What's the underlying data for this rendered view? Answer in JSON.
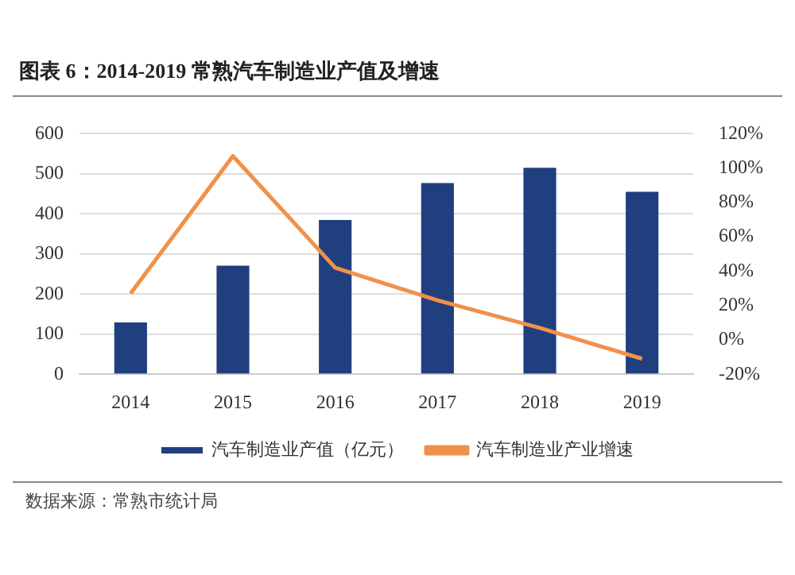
{
  "chart_data": {
    "type": "bar",
    "title": "图表 6：2014-2019 常熟汽车制造业产值及增速",
    "categories": [
      "2014",
      "2015",
      "2016",
      "2017",
      "2018",
      "2019"
    ],
    "series": [
      {
        "name": "汽车制造业产值（亿元）",
        "color": "#203f7f",
        "values": [
          129,
          271,
          385,
          477,
          515,
          455
        ]
      },
      {
        "name": "汽车制造业产业增速",
        "type": "line",
        "axis": "y2",
        "color": "#f0914a",
        "values": [
          27,
          107,
          42,
          23,
          7,
          -11
        ]
      }
    ],
    "ylim": [
      0,
      600
    ],
    "yticks": [
      0,
      100,
      200,
      300,
      400,
      500,
      600
    ],
    "y2lim": [
      -20,
      120
    ],
    "y2ticks": [
      {
        "value": -20,
        "label": "-20%"
      },
      {
        "value": 0,
        "label": "0%"
      },
      {
        "value": 20,
        "label": "20%"
      },
      {
        "value": 40,
        "label": "40%"
      },
      {
        "value": 60,
        "label": "60%"
      },
      {
        "value": 80,
        "label": "80%"
      },
      {
        "value": 100,
        "label": "100%"
      },
      {
        "value": 120,
        "label": "120%"
      }
    ],
    "grid": "y",
    "legend": "bottom",
    "marker": "none",
    "annotations": [
      "数据来源：常熟市统计局"
    ]
  }
}
